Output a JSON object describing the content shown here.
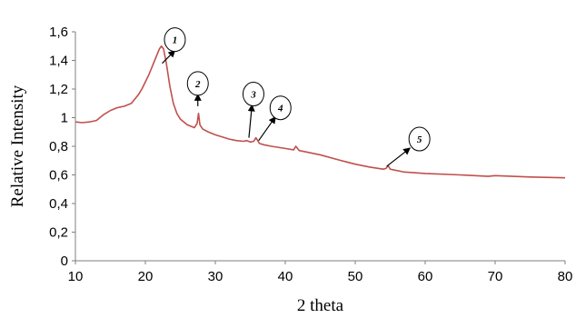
{
  "chart_data": {
    "type": "line",
    "title": "",
    "xlabel": "2 theta",
    "ylabel": "Relative Intensity",
    "xlim": [
      10,
      80
    ],
    "ylim": [
      0,
      1.6
    ],
    "x_ticks": [
      10,
      20,
      30,
      40,
      50,
      60,
      70,
      80
    ],
    "y_ticks": [
      "0",
      "0,2",
      "0,4",
      "0,6",
      "0,8",
      "1",
      "1,2",
      "1,4",
      "1,6"
    ],
    "grid": false,
    "legend": "none",
    "line_color": "#c0504d",
    "series": [
      {
        "x": [
          10,
          11,
          12,
          13,
          13.5,
          14,
          15,
          15.5,
          16,
          16.5,
          17,
          18,
          18.5,
          19,
          19.5,
          20,
          20.5,
          21,
          21.5,
          22,
          22.3,
          22.6,
          23,
          23.5,
          24,
          24.5,
          25,
          26,
          27,
          27.4,
          27.6,
          27.8,
          28.2,
          29,
          30,
          31,
          32,
          33,
          34,
          34.5,
          35,
          35.5,
          35.8,
          36,
          36.3,
          37,
          38,
          40,
          41.2,
          41.5,
          42,
          45,
          48,
          50,
          52,
          54,
          54.4,
          54.7,
          55,
          57,
          60,
          65,
          69,
          70,
          75,
          80
        ],
        "y": [
          0.97,
          0.965,
          0.97,
          0.98,
          1.0,
          1.02,
          1.05,
          1.06,
          1.07,
          1.075,
          1.08,
          1.1,
          1.13,
          1.16,
          1.2,
          1.25,
          1.3,
          1.36,
          1.42,
          1.48,
          1.5,
          1.48,
          1.38,
          1.22,
          1.1,
          1.03,
          0.99,
          0.95,
          0.93,
          0.96,
          1.03,
          0.95,
          0.92,
          0.9,
          0.88,
          0.865,
          0.85,
          0.84,
          0.835,
          0.84,
          0.83,
          0.835,
          0.86,
          0.845,
          0.82,
          0.81,
          0.8,
          0.785,
          0.775,
          0.8,
          0.77,
          0.74,
          0.7,
          0.675,
          0.655,
          0.64,
          0.645,
          0.665,
          0.64,
          0.62,
          0.61,
          0.6,
          0.59,
          0.595,
          0.585,
          0.58
        ]
      }
    ],
    "annotations": [
      {
        "label": "1",
        "peak_x": 22.4,
        "peak_y": 1.38
      },
      {
        "label": "2",
        "peak_x": 27.5,
        "peak_y": 1.08
      },
      {
        "label": "3",
        "peak_x": 34.8,
        "peak_y": 0.86
      },
      {
        "label": "4",
        "peak_x": 36.2,
        "peak_y": 0.84
      },
      {
        "label": "5",
        "peak_x": 54.5,
        "peak_y": 0.66
      }
    ]
  }
}
